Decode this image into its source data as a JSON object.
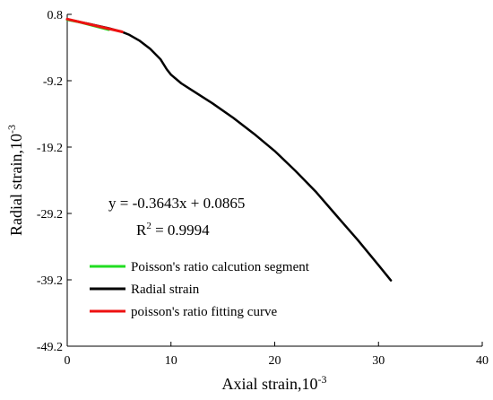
{
  "chart_data": {
    "type": "line",
    "xlabel": "Axial strain,10",
    "xlabel_exp": "-3",
    "ylabel": "Radial strain,10",
    "ylabel_exp": "-3",
    "xlim": [
      0,
      40
    ],
    "ylim": [
      -49.2,
      0.8
    ],
    "x_ticks": [
      0,
      10,
      20,
      30,
      40
    ],
    "y_ticks": [
      0.8,
      -9.2,
      -19.2,
      -29.2,
      -39.2,
      -49.2
    ],
    "x_tick_labels": [
      "0",
      "10",
      "20",
      "30",
      "40"
    ],
    "y_tick_labels": [
      "0.8",
      "-9.2",
      "-19.2",
      "-29.2",
      "-39.2",
      "-49.2"
    ],
    "grid": false,
    "legend_position": "lower-left",
    "annotation": {
      "equation": "y = -0.3643x + 0.0865",
      "r2_prefix": "R",
      "r2_sup": "2",
      "r2_value": " = 0.9994"
    },
    "series": [
      {
        "name": "Poisson's ratio calcution segment",
        "color": "#22dd22",
        "x": [
          0,
          1,
          2,
          3,
          4
        ],
        "y": [
          0.0,
          -0.3,
          -0.7,
          -1.1,
          -1.5
        ]
      },
      {
        "name": "Radial strain",
        "color": "#000000",
        "x": [
          0,
          2,
          4,
          5.2,
          6,
          7,
          8,
          9,
          9.6,
          10,
          11,
          12,
          14,
          16,
          18,
          20,
          22,
          24,
          26,
          28,
          30,
          31.2
        ],
        "y": [
          0.0,
          -0.6,
          -1.3,
          -1.8,
          -2.3,
          -3.2,
          -4.4,
          -6.0,
          -7.5,
          -8.3,
          -9.6,
          -10.6,
          -12.6,
          -14.8,
          -17.2,
          -19.8,
          -22.8,
          -26.0,
          -29.6,
          -33.2,
          -37.0,
          -39.3
        ]
      },
      {
        "name": "poisson's ratio fitting curve",
        "color": "#ee1111",
        "x": [
          0,
          5.3
        ],
        "y": [
          0.0865,
          -1.84
        ]
      }
    ]
  }
}
